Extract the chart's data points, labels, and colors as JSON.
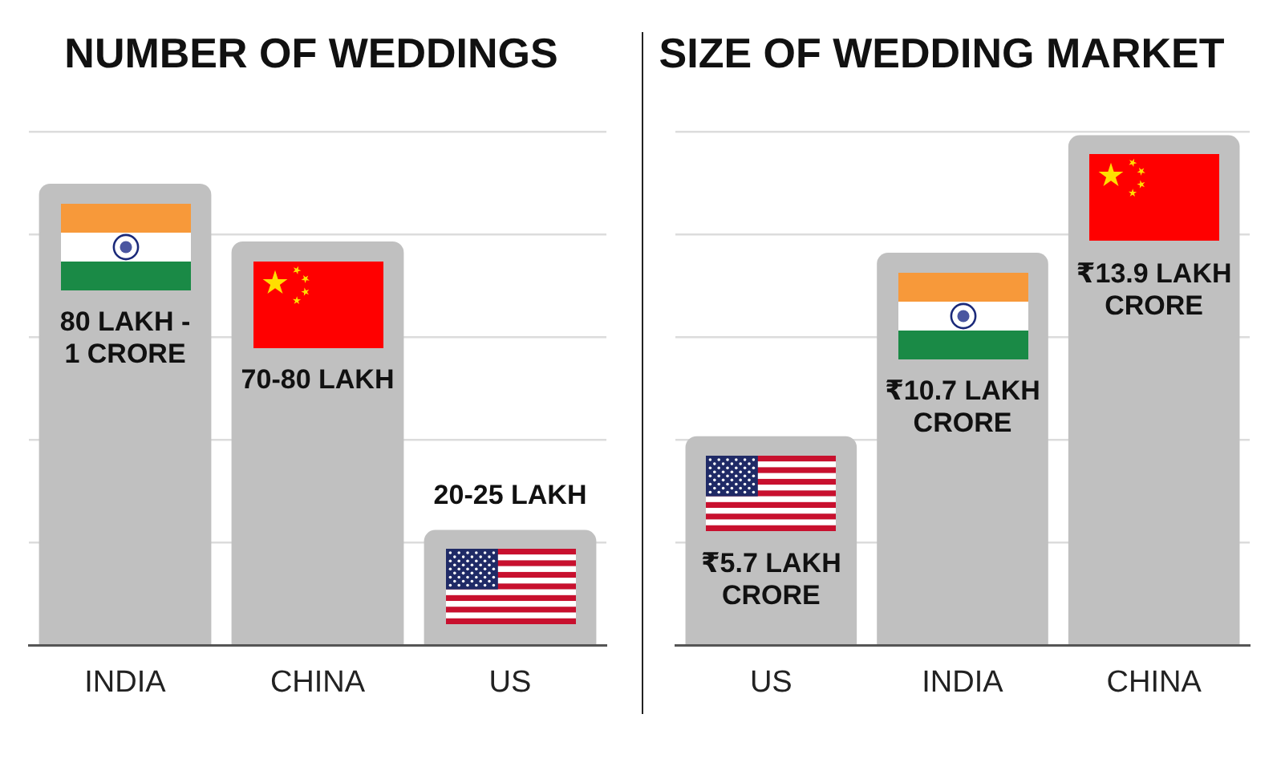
{
  "chart_data": [
    {
      "type": "bar",
      "title": "NUMBER OF WEDDINGS",
      "categories": [
        "INDIA",
        "CHINA",
        "US"
      ],
      "values": [
        80,
        70,
        20
      ],
      "value_labels": [
        "80 LAKH - 1 CRORE",
        "70-80 LAKH",
        "20-25 LAKH"
      ],
      "color": "#c0c0c0",
      "grid": "y",
      "tick_labels": "x"
    },
    {
      "type": "bar",
      "title": "SIZE OF WEDDING MARKET",
      "categories": [
        "US",
        "INDIA",
        "CHINA"
      ],
      "values": [
        5.7,
        10.7,
        13.9
      ],
      "value_labels": [
        "₹5.7 LAKH CRORE",
        "₹10.7 LAKH CRORE",
        "₹13.9 LAKH CRORE"
      ],
      "color": "#c0c0c0",
      "ylim": [
        0,
        14
      ],
      "yticks": [
        {
          "value": 0,
          "label": null
        },
        {
          "value": 2.8,
          "label": null
        },
        {
          "value": 5.6,
          "label": null
        },
        {
          "value": 8.4,
          "label": null
        },
        {
          "value": 11.2,
          "label": null
        },
        {
          "value": 14,
          "label": null
        }
      ],
      "grid": "y",
      "tick_labels": "x"
    }
  ]
}
